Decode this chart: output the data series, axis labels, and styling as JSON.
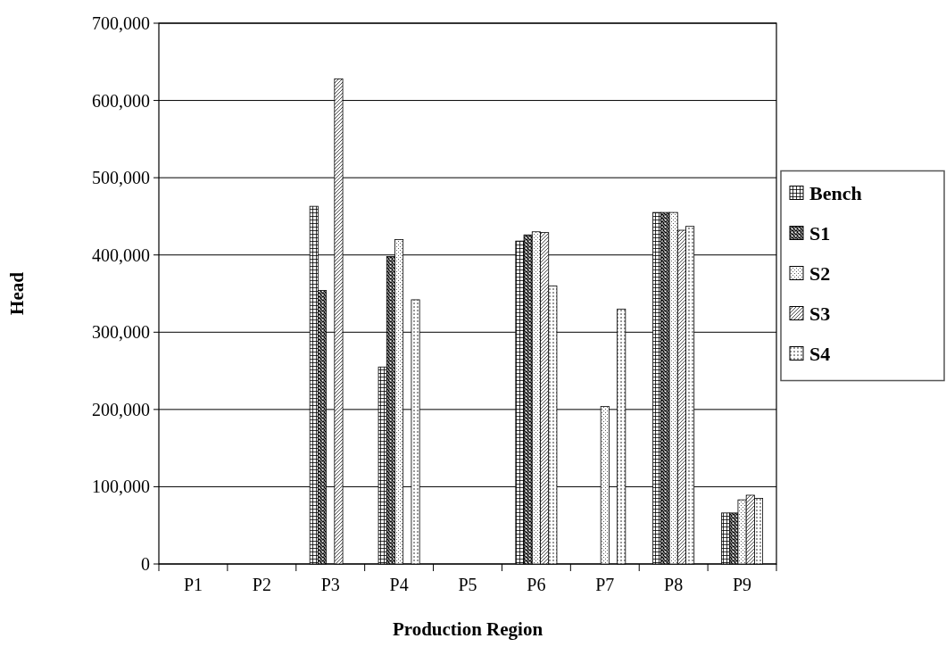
{
  "chart_data": {
    "type": "bar",
    "xlabel": "Production Region",
    "ylabel": "Head",
    "categories": [
      "P1",
      "P2",
      "P3",
      "P4",
      "P5",
      "P6",
      "P7",
      "P8",
      "P9"
    ],
    "series": [
      {
        "name": "Bench",
        "color": "#000000",
        "values": [
          0,
          0,
          463000,
          255000,
          0,
          418000,
          0,
          455000,
          66000
        ]
      },
      {
        "name": "S1",
        "color": "#000000",
        "values": [
          0,
          0,
          354000,
          398000,
          0,
          426000,
          0,
          455000,
          66000
        ]
      },
      {
        "name": "S2",
        "color": "#000000",
        "values": [
          0,
          0,
          0,
          420000,
          0,
          430000,
          204000,
          455000,
          83000
        ]
      },
      {
        "name": "S3",
        "color": "#000000",
        "values": [
          0,
          0,
          628000,
          0,
          0,
          429000,
          0,
          432000,
          89000
        ]
      },
      {
        "name": "S4",
        "color": "#000000",
        "values": [
          0,
          0,
          0,
          342000,
          0,
          360000,
          330000,
          437000,
          85000
        ]
      }
    ],
    "ylim": [
      0,
      700000
    ],
    "yticks": [
      {
        "value": 0,
        "label": "0"
      },
      {
        "value": 100000,
        "label": "100,000"
      },
      {
        "value": 200000,
        "label": "200,000"
      },
      {
        "value": 300000,
        "label": "300,000"
      },
      {
        "value": 400000,
        "label": "400,000"
      },
      {
        "value": 500000,
        "label": "500,000"
      },
      {
        "value": 600000,
        "label": "600,000"
      },
      {
        "value": 700000,
        "label": "700,000"
      }
    ],
    "grid": "y",
    "legend": "right"
  }
}
